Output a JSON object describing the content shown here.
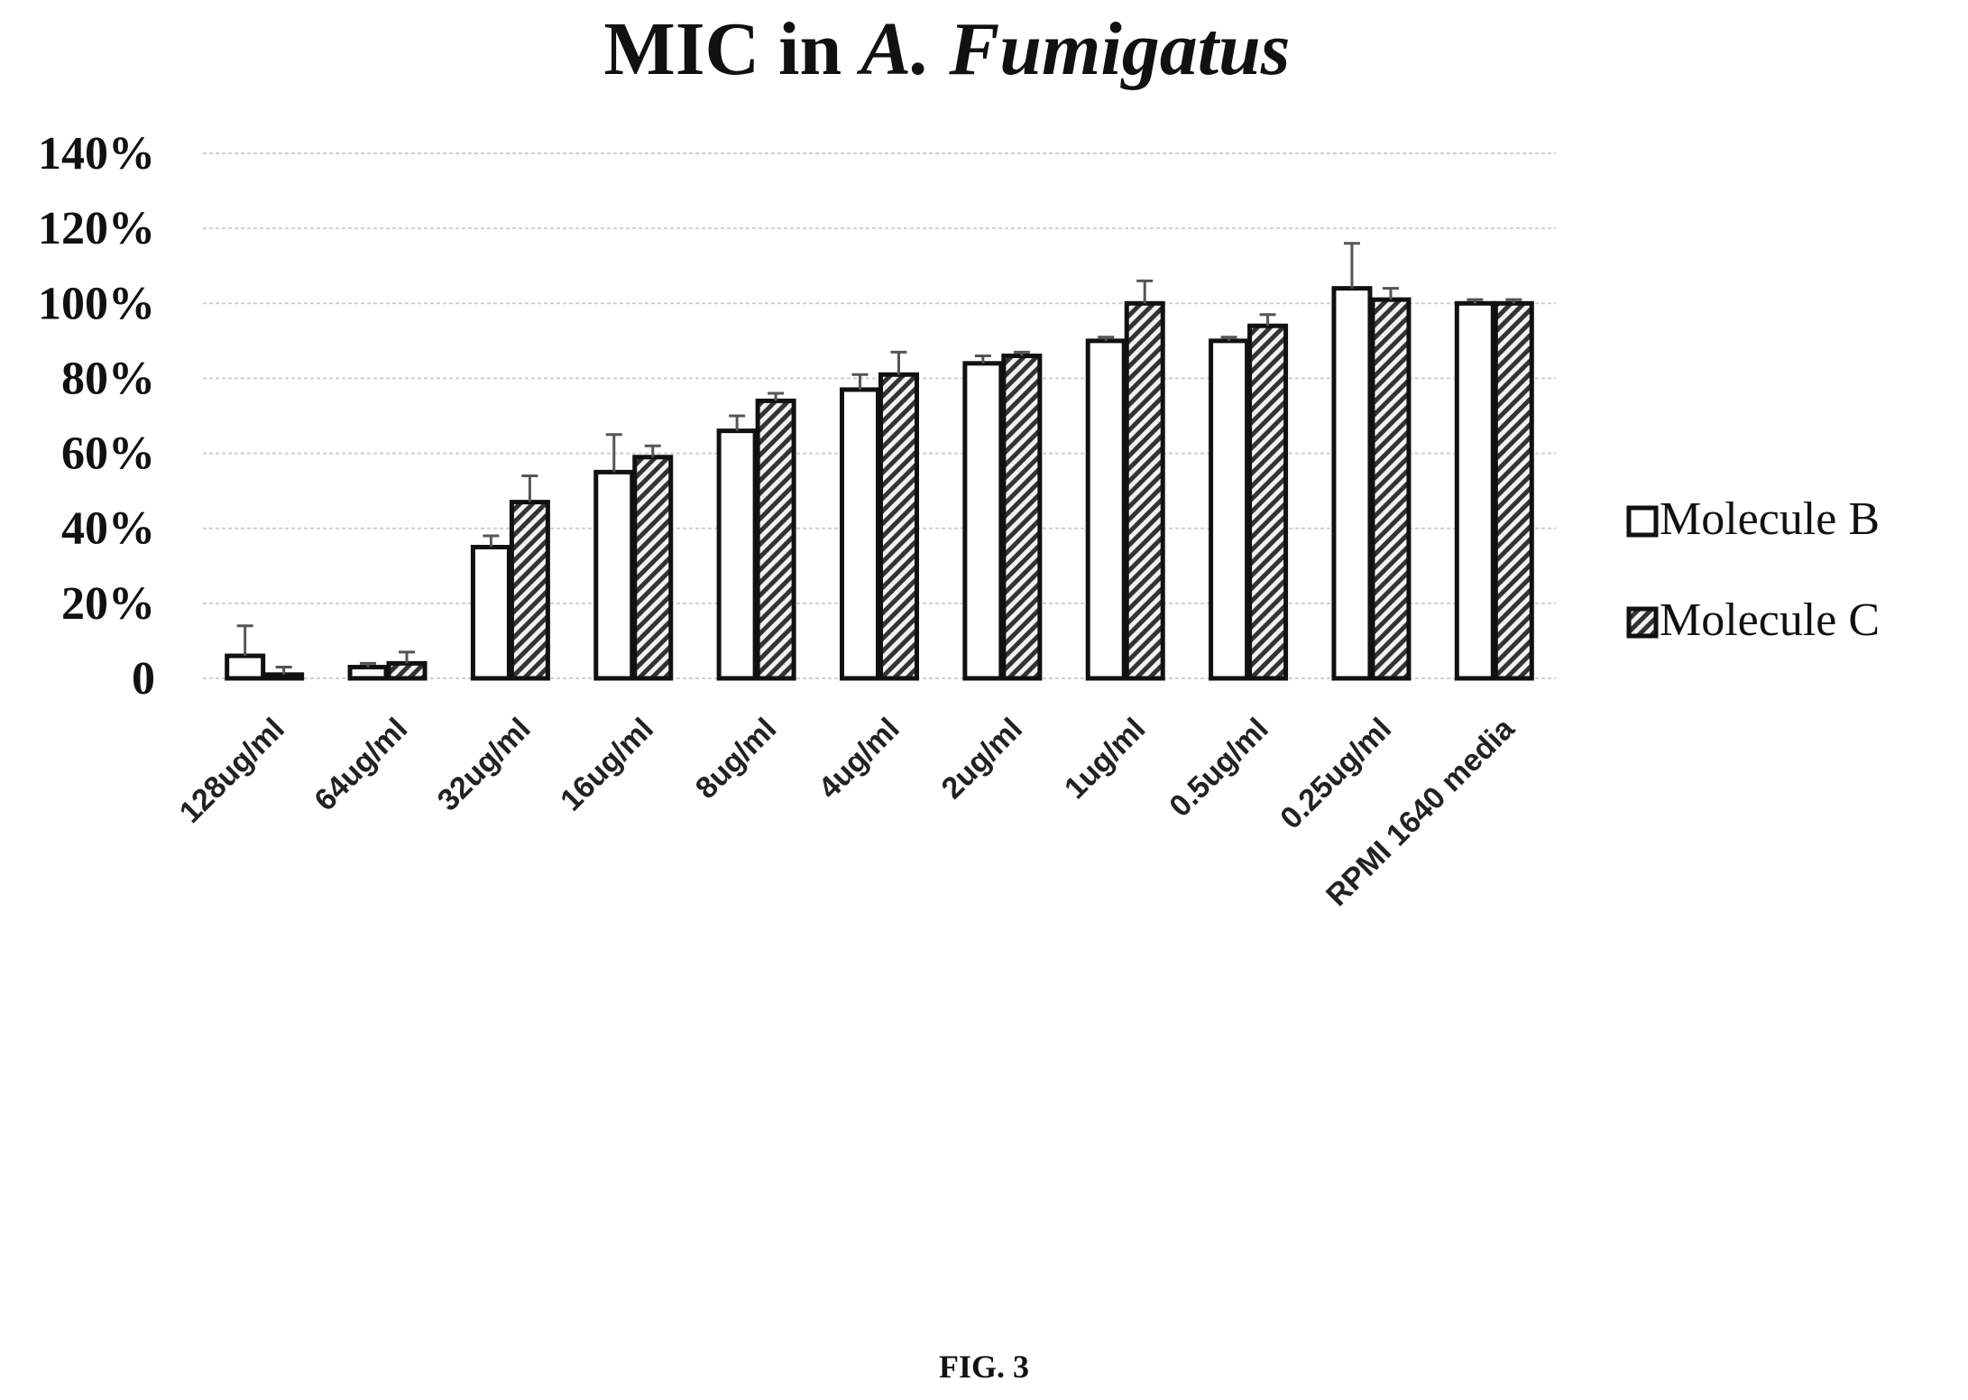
{
  "chart_data": {
    "type": "bar",
    "title_prefix": "MIC in ",
    "title_italic": "A. Fumigatus",
    "categories": [
      "128ug/ml",
      "64ug/ml",
      "32ug/ml",
      "16ug/ml",
      "8ug/ml",
      "4ug/ml",
      "2ug/ml",
      "1ug/ml",
      "0.5ug/ml",
      "0.25ug/ml",
      "RPMI 1640 media"
    ],
    "series": [
      {
        "name": "Molecule B",
        "pattern": "white",
        "values": [
          6,
          3,
          35,
          55,
          66,
          77,
          84,
          90,
          90,
          104,
          100
        ],
        "errors": [
          8,
          1,
          3,
          10,
          4,
          4,
          2,
          1,
          1,
          12,
          1
        ]
      },
      {
        "name": "Molecule C",
        "pattern": "diagonal-hatch",
        "values": [
          1,
          4,
          47,
          59,
          74,
          81,
          86,
          100,
          94,
          101,
          100
        ],
        "errors": [
          2,
          3,
          7,
          3,
          2,
          6,
          1,
          6,
          3,
          3,
          1
        ]
      }
    ],
    "yticks": [
      {
        "value": 0,
        "label": "0"
      },
      {
        "value": 20,
        "label": "20%"
      },
      {
        "value": 40,
        "label": "40%"
      },
      {
        "value": 60,
        "label": "60%"
      },
      {
        "value": 80,
        "label": "80%"
      },
      {
        "value": 100,
        "label": "100%"
      },
      {
        "value": 120,
        "label": "120%"
      },
      {
        "value": 140,
        "label": "140%"
      }
    ],
    "ylim": [
      0,
      140
    ],
    "grid": true,
    "legend_position": "right",
    "colors": {
      "bar_outline": "#111111",
      "bar_b_fill": "#ffffff",
      "hatch_light": "#f2f2f2",
      "hatch_dark": "#333333",
      "gridline": "#cfcfcf",
      "error_bar": "#555555"
    }
  },
  "caption": "FIG. 3"
}
